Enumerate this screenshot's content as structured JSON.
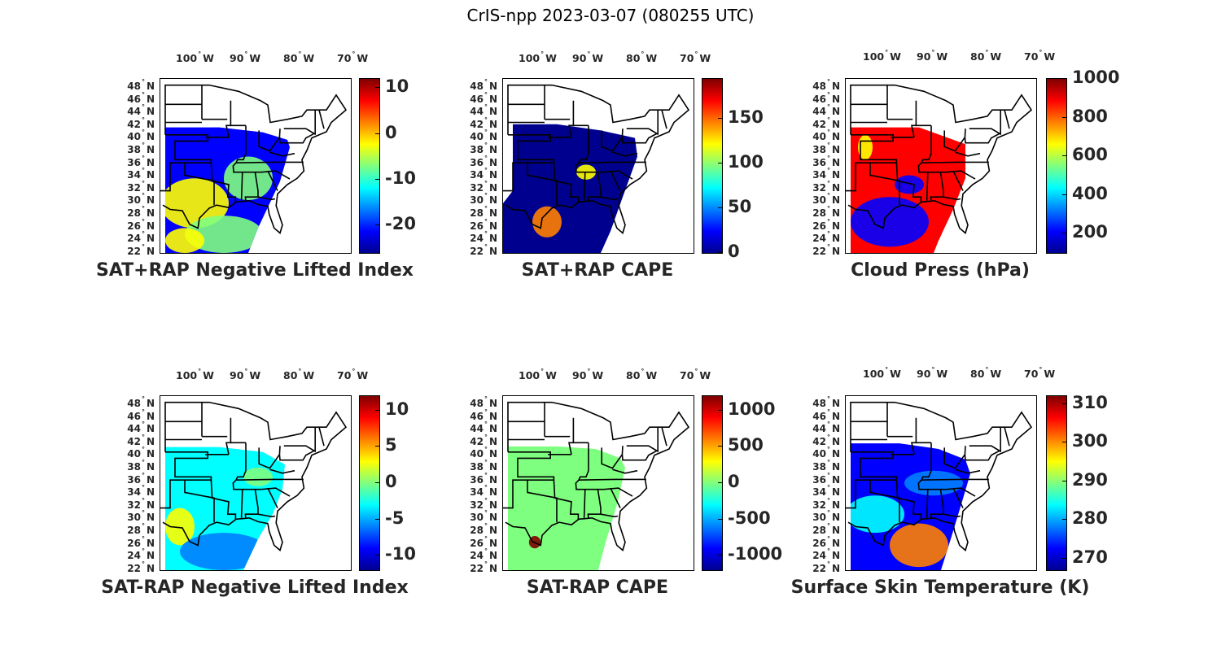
{
  "figure": {
    "title": "CrIS-npp 2023-03-07 (080255 UTC)"
  },
  "axes": {
    "lon_ticks": [
      {
        "deg": "100",
        "hem": "W"
      },
      {
        "deg": "90",
        "hem": "W"
      },
      {
        "deg": "80",
        "hem": "W"
      },
      {
        "deg": "70",
        "hem": "W"
      }
    ],
    "lat_ticks": [
      {
        "deg": "48",
        "hem": "N"
      },
      {
        "deg": "46",
        "hem": "N"
      },
      {
        "deg": "44",
        "hem": "N"
      },
      {
        "deg": "42",
        "hem": "N"
      },
      {
        "deg": "40",
        "hem": "N"
      },
      {
        "deg": "38",
        "hem": "N"
      },
      {
        "deg": "36",
        "hem": "N"
      },
      {
        "deg": "34",
        "hem": "N"
      },
      {
        "deg": "32",
        "hem": "N"
      },
      {
        "deg": "30",
        "hem": "N"
      },
      {
        "deg": "28",
        "hem": "N"
      },
      {
        "deg": "26",
        "hem": "N"
      },
      {
        "deg": "24",
        "hem": "N"
      },
      {
        "deg": "22",
        "hem": "N"
      }
    ],
    "colormap": [
      "#00008f",
      "#0000ff",
      "#007fff",
      "#00ffff",
      "#7fff7f",
      "#ffff00",
      "#ff7f00",
      "#ff0000",
      "#7f0000"
    ]
  },
  "chart_data": [
    {
      "type": "heatmap",
      "title": "SAT+RAP Negative Lifted Index",
      "colorbar": {
        "range": [
          -26,
          12
        ],
        "ticks": [
          "10",
          "0",
          "-10",
          "-20"
        ],
        "tick_values": [
          10,
          0,
          -10,
          -20
        ]
      },
      "regions": [
        {
          "area": "swath north (KS-OH)",
          "value": -19
        },
        {
          "area": "Texas / Gulf coast",
          "value": 0
        },
        {
          "area": "southeast states",
          "value": -5
        },
        {
          "area": "Gulf of Mexico",
          "value": -8
        }
      ]
    },
    {
      "type": "heatmap",
      "title": "SAT+RAP CAPE",
      "colorbar": {
        "range": [
          0,
          195
        ],
        "ticks": [
          "150",
          "100",
          "50",
          "0"
        ],
        "tick_values": [
          150,
          100,
          50,
          0
        ]
      },
      "regions": [
        {
          "area": "swath background",
          "value": 0
        },
        {
          "area": "Texas / Louisiana coast streaks",
          "value": 150
        },
        {
          "area": "Tennessee valley streaks",
          "value": 110
        }
      ]
    },
    {
      "type": "heatmap",
      "title": "Cloud Press (hPa)",
      "colorbar": {
        "range": [
          100,
          1000
        ],
        "ticks": [
          "1000",
          "800",
          "600",
          "400",
          "200"
        ],
        "tick_values": [
          1000,
          800,
          600,
          400,
          200
        ]
      },
      "regions": [
        {
          "area": "Tennessee / Kentucky",
          "value": 850
        },
        {
          "area": "Gulf of Mexico",
          "value": 180
        },
        {
          "area": "Kansas / Nebraska",
          "value": 620
        },
        {
          "area": "Florida straits",
          "value": 850
        }
      ]
    },
    {
      "type": "heatmap",
      "title": "SAT-RAP Negative Lifted Index",
      "colorbar": {
        "range": [
          -12,
          12
        ],
        "ticks": [
          "10",
          "5",
          "0",
          "-5",
          "-10"
        ],
        "tick_values": [
          10,
          5,
          0,
          -5,
          -10
        ]
      },
      "regions": [
        {
          "area": "central plains",
          "value": -4
        },
        {
          "area": "west Texas",
          "value": 4
        },
        {
          "area": "Gulf of Mexico",
          "value": -7
        },
        {
          "area": "Kentucky / Virginia",
          "value": 1
        }
      ]
    },
    {
      "type": "heatmap",
      "title": "SAT-RAP CAPE",
      "colorbar": {
        "range": [
          -1200,
          1200
        ],
        "ticks": [
          "1000",
          "500",
          "0",
          "-500",
          "-1000"
        ],
        "tick_values": [
          1000,
          500,
          0,
          -500,
          -1000
        ]
      },
      "regions": [
        {
          "area": "swath background",
          "value": 0
        },
        {
          "area": "south Texas coast",
          "value": 1100
        }
      ]
    },
    {
      "type": "heatmap",
      "title": "Surface Skin Temperature (K)",
      "colorbar": {
        "range": [
          267,
          312
        ],
        "ticks": [
          "310",
          "300",
          "290",
          "280",
          "270"
        ],
        "tick_values": [
          310,
          300,
          290,
          280,
          270
        ]
      },
      "regions": [
        {
          "area": "northern swath",
          "value": 272
        },
        {
          "area": "Ohio valley",
          "value": 280
        },
        {
          "area": "Texas",
          "value": 285
        },
        {
          "area": "Gulf of Mexico",
          "value": 298
        }
      ]
    }
  ]
}
